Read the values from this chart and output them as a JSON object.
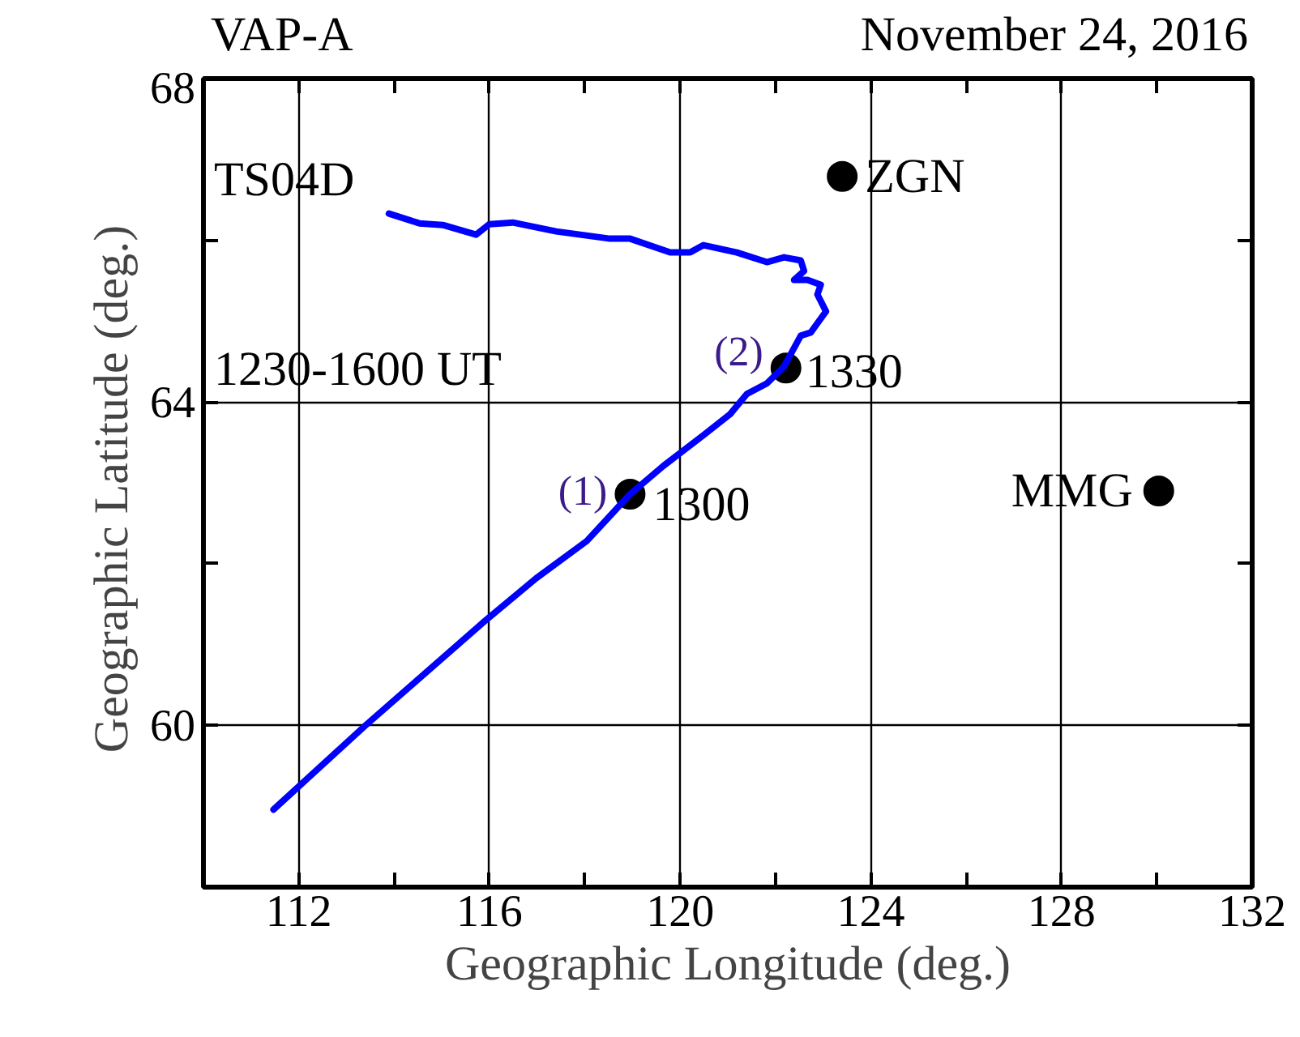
{
  "chart_data": {
    "type": "line",
    "title": "VAP-A",
    "subtitle": "November 24, 2016",
    "xlabel": "Geographic Longitude (deg.)",
    "ylabel": "Geographic Latitude  (deg.)",
    "xlim": [
      110,
      132
    ],
    "ylim": [
      58,
      68
    ],
    "xticks": [
      {
        "value": 110,
        "label": null
      },
      112,
      {
        "value": 114,
        "label": null
      },
      116,
      {
        "value": 118,
        "label": null
      },
      120,
      {
        "value": 122,
        "label": null
      },
      124,
      {
        "value": 126,
        "label": null
      },
      128,
      {
        "value": 130,
        "label": null
      },
      132
    ],
    "yticks": [
      {
        "value": 58,
        "label": null
      },
      60,
      {
        "value": 62,
        "label": null
      },
      64,
      {
        "value": 66,
        "label": null
      },
      68
    ],
    "grid": true,
    "series": [
      {
        "type": "line",
        "color": "#0000ff",
        "marker": "none",
        "line_style": "solid",
        "x": [
          111.47,
          113.4,
          115.86,
          116.98,
          118.04,
          118.95,
          119.65,
          120.49,
          121.05,
          121.4,
          121.82,
          122.18,
          122.53,
          122.74,
          123.06,
          122.88,
          122.95,
          122.67,
          122.39,
          122.6,
          122.53,
          122.18,
          121.82,
          121.19,
          120.49,
          120.21,
          119.79,
          118.95,
          118.53,
          117.4,
          116.49,
          116.0,
          115.72,
          115.02,
          114.53,
          113.89
        ],
        "values": [
          58.96,
          60.0,
          61.27,
          61.82,
          62.28,
          62.86,
          63.21,
          63.59,
          63.85,
          64.1,
          64.23,
          64.44,
          64.82,
          64.86,
          65.12,
          65.33,
          65.45,
          65.51,
          65.51,
          65.62,
          65.75,
          65.79,
          65.73,
          65.85,
          65.94,
          65.85,
          65.85,
          66.02,
          66.02,
          66.11,
          66.22,
          66.2,
          66.07,
          66.19,
          66.21,
          66.33
        ]
      },
      {
        "type": "scatter",
        "color": "#000000",
        "marker": "circle",
        "x": [
          118.95,
          122.22,
          123.4,
          130.04
        ],
        "values": [
          62.86,
          64.42,
          66.79,
          62.9
        ]
      }
    ],
    "annotations": [
      "TS04D",
      "1230-1600 UT",
      {
        "text": "1300",
        "x": 118.95,
        "y": 62.86
      },
      {
        "text": "(1)",
        "x": 118.95,
        "y": 62.86
      },
      {
        "text": "1330",
        "x": 122.22,
        "y": 64.42
      },
      {
        "text": "(2)",
        "x": 122.22,
        "y": 64.42
      },
      {
        "text": "ZGN",
        "x": 123.4,
        "y": 66.79
      },
      {
        "text": "MMG",
        "x": 130.04,
        "y": 62.9
      }
    ]
  }
}
